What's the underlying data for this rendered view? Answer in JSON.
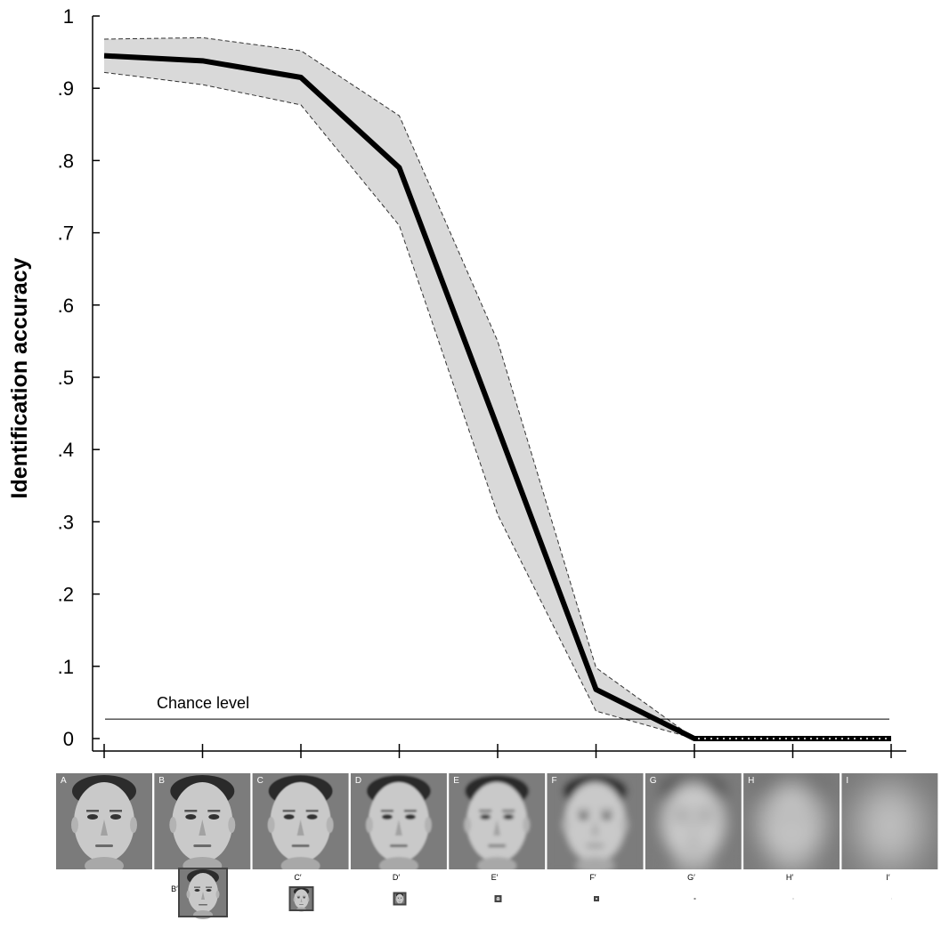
{
  "chart_data": {
    "type": "line",
    "ylabel": "Identification accuracy",
    "xlabel": "",
    "ylim": [
      0,
      1
    ],
    "yticks": [
      {
        "v": 0,
        "label": "0"
      },
      {
        "v": 0.1,
        "label": ".1"
      },
      {
        "v": 0.2,
        "label": ".2"
      },
      {
        "v": 0.3,
        "label": ".3"
      },
      {
        "v": 0.4,
        "label": ".4"
      },
      {
        "v": 0.5,
        "label": ".5"
      },
      {
        "v": 0.6,
        "label": ".6"
      },
      {
        "v": 0.7,
        "label": ".7"
      },
      {
        "v": 0.8,
        "label": ".8"
      },
      {
        "v": 0.9,
        "label": ".9"
      },
      {
        "v": 1,
        "label": "1"
      }
    ],
    "categories": [
      "A",
      "B",
      "C",
      "D",
      "E",
      "F",
      "G",
      "H",
      "I"
    ],
    "series": [
      {
        "values": [
          0.945,
          0.938,
          0.915,
          0.79,
          0.43,
          0.068,
          0.0,
          0.0,
          0.0
        ],
        "upper": [
          0.968,
          0.97,
          0.952,
          0.862,
          0.55,
          0.098,
          0.0,
          0.0,
          0.0
        ],
        "lower": [
          0.922,
          0.905,
          0.877,
          0.71,
          0.31,
          0.038,
          0.0,
          0.0,
          0.0
        ]
      }
    ],
    "chance_level": {
      "label": "Chance level",
      "value": 0.027
    },
    "grid": false,
    "legend": "none"
  },
  "stimuli": {
    "panels": [
      {
        "letter": "A",
        "blur": 0
      },
      {
        "letter": "B",
        "blur": 0.3
      },
      {
        "letter": "C",
        "blur": 0.6
      },
      {
        "letter": "D",
        "blur": 1.0
      },
      {
        "letter": "E",
        "blur": 1.8
      },
      {
        "letter": "F",
        "blur": 4
      },
      {
        "letter": "G",
        "blur": 8
      },
      {
        "letter": "H",
        "blur": 13
      },
      {
        "letter": "I",
        "blur": 20
      }
    ],
    "small": [
      {
        "letter": "B′",
        "size": 54
      },
      {
        "letter": "C′",
        "size": 26
      },
      {
        "letter": "D′",
        "size": 13
      },
      {
        "letter": "E′",
        "size": 6
      },
      {
        "letter": "F′",
        "size": 4
      },
      {
        "letter": "G′",
        "size": 2
      },
      {
        "letter": "H′",
        "size": 1
      },
      {
        "letter": "I′",
        "size": 0.6
      }
    ]
  }
}
